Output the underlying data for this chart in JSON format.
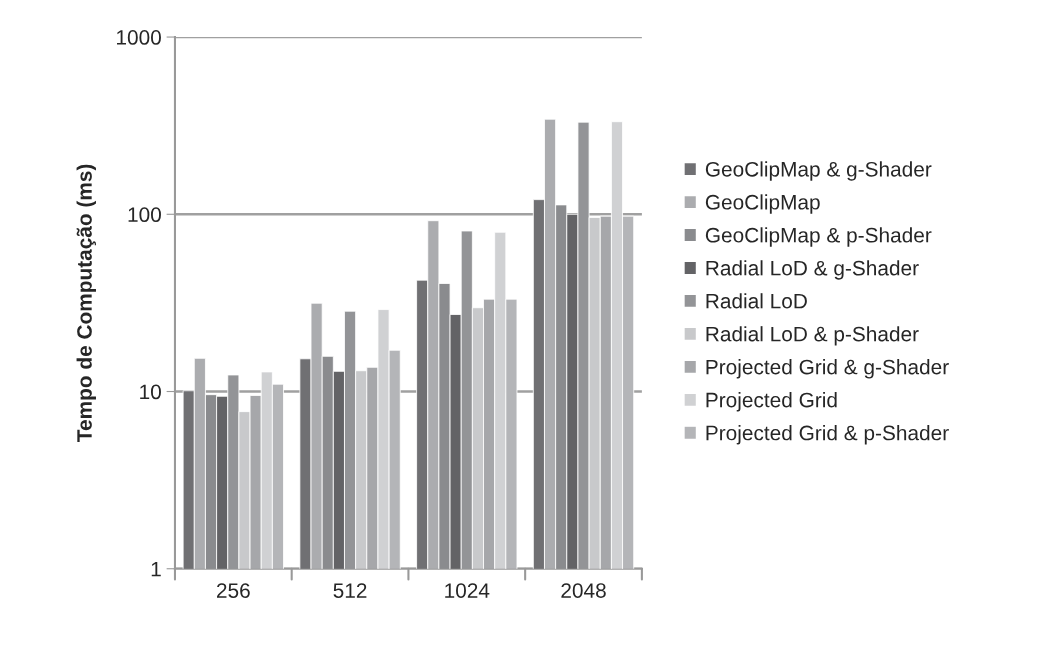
{
  "chart_data": {
    "type": "bar",
    "ylabel": "Tempo de Computação (ms)",
    "categories": [
      "256",
      "512",
      "1024",
      "2048"
    ],
    "log": true,
    "ylim": [
      1,
      1000
    ],
    "yticks": [
      1,
      10,
      100,
      1000
    ],
    "grid": "y",
    "legend": "right",
    "series": [
      {
        "name": "GeoClipMap & g-Shader",
        "color": "#707073",
        "values": [
          10.1,
          15.3,
          42.5,
          121
        ]
      },
      {
        "name": "GeoClipMap",
        "color": "#abacaf",
        "values": [
          15.4,
          31.5,
          92,
          344
        ]
      },
      {
        "name": "GeoClipMap & p-Shader",
        "color": "#8a8b8e",
        "values": [
          9.6,
          15.8,
          40.7,
          113
        ]
      },
      {
        "name": "Radial LoD & g-Shader",
        "color": "#636366",
        "values": [
          9.4,
          13,
          27.2,
          100
        ]
      },
      {
        "name": "Radial LoD",
        "color": "#939497",
        "values": [
          12.4,
          28.4,
          80.5,
          331
        ]
      },
      {
        "name": "Radial LoD & p-Shader",
        "color": "#c8c9cb",
        "values": [
          7.7,
          13.1,
          29.7,
          96
        ]
      },
      {
        "name": "Projected Grid & g-Shader",
        "color": "#a6a7aa",
        "values": [
          9.5,
          13.7,
          33.2,
          97.6
        ]
      },
      {
        "name": "Projected Grid",
        "color": "#d0d1d3",
        "values": [
          12.9,
          29,
          79.2,
          333
        ]
      },
      {
        "name": "Projected Grid & p-Shader",
        "color": "#b4b5b8",
        "values": [
          11,
          17.1,
          33.2,
          97.6
        ]
      }
    ]
  }
}
